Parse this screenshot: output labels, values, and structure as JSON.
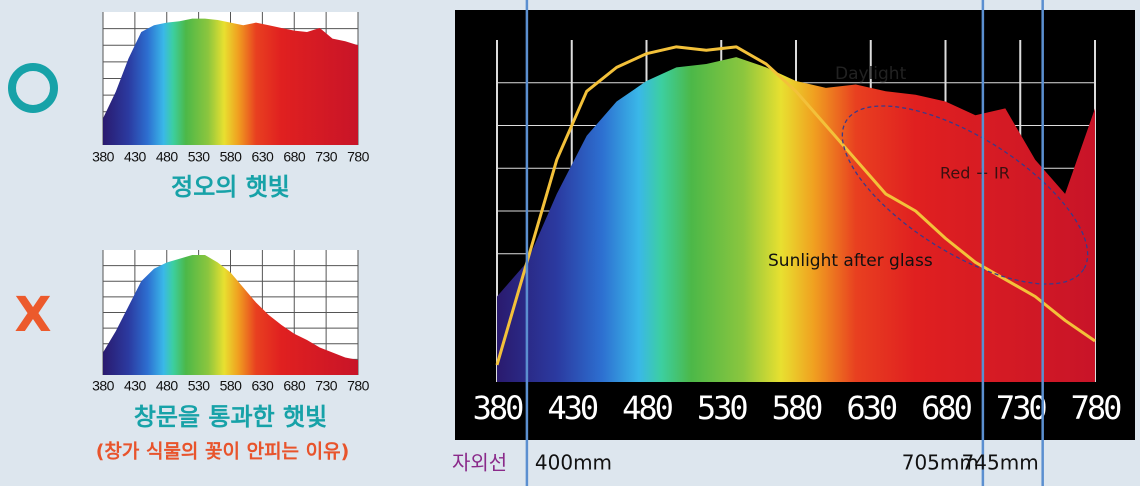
{
  "good_mark": "O",
  "bad_mark": "X",
  "chart_data": [
    {
      "type": "area",
      "caption": "정오의 햇빛",
      "x": [
        380,
        400,
        420,
        440,
        460,
        480,
        500,
        520,
        540,
        560,
        580,
        600,
        620,
        640,
        660,
        680,
        700,
        720,
        740,
        760,
        780
      ],
      "values": [
        20,
        40,
        65,
        85,
        90,
        92,
        93,
        95,
        95,
        94,
        92,
        90,
        92,
        90,
        88,
        86,
        85,
        88,
        80,
        78,
        75
      ],
      "xlim": [
        380,
        780
      ],
      "xticks": [
        380,
        430,
        480,
        530,
        580,
        630,
        680,
        730,
        780
      ],
      "ylim": [
        0,
        100
      ],
      "grid": true
    },
    {
      "type": "area",
      "caption": "창문을 통과한 햇빛",
      "note": "(창가 식물의 꽃이 안피는 이유)",
      "x": [
        380,
        400,
        420,
        440,
        460,
        480,
        500,
        520,
        540,
        560,
        580,
        600,
        620,
        640,
        660,
        680,
        700,
        720,
        740,
        760,
        780
      ],
      "values": [
        18,
        35,
        55,
        75,
        85,
        90,
        93,
        96,
        96,
        90,
        82,
        70,
        58,
        48,
        40,
        33,
        28,
        22,
        18,
        14,
        12
      ],
      "xlim": [
        380,
        780
      ],
      "xticks": [
        380,
        430,
        480,
        530,
        580,
        630,
        680,
        730,
        780
      ],
      "ylim": [
        0,
        100
      ],
      "grid": true
    },
    {
      "type": "area",
      "x": [
        380,
        400,
        420,
        440,
        460,
        480,
        500,
        520,
        540,
        560,
        580,
        600,
        620,
        640,
        660,
        680,
        700,
        720,
        740,
        760,
        780
      ],
      "series": [
        {
          "name": "Daylight",
          "values": [
            25,
            35,
            55,
            72,
            82,
            88,
            92,
            93,
            95,
            92,
            88,
            86,
            87,
            85,
            84,
            82,
            78,
            80,
            65,
            55,
            80
          ]
        },
        {
          "name": "Sunlight after glass",
          "color": "#f3c13a",
          "values": [
            5,
            35,
            65,
            85,
            92,
            96,
            98,
            97,
            98,
            93,
            85,
            75,
            65,
            55,
            50,
            42,
            35,
            30,
            25,
            18,
            12
          ]
        }
      ],
      "annotation": "Red + IR",
      "xlim": [
        380,
        780
      ],
      "xticks": [
        380,
        430,
        480,
        530,
        580,
        630,
        680,
        730,
        780
      ],
      "ylim": [
        0,
        100
      ],
      "grid": true,
      "uv_label": "자외선",
      "markers": [
        {
          "value": 400,
          "label": "400mm"
        },
        {
          "value": 705,
          "label": "705mm"
        },
        {
          "value": 745,
          "label": "745mm"
        }
      ]
    }
  ]
}
